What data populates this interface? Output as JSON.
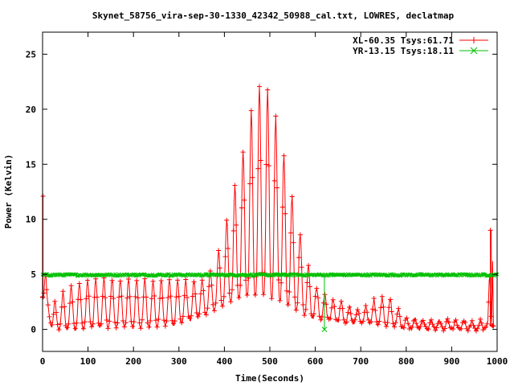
{
  "chart_data": {
    "type": "line",
    "title": "Skynet_58756_vira-sep-30-1330_42342_50988_cal.txt, LOWRES, declatmap",
    "xlabel": "Time(Seconds)",
    "ylabel": "Power (Kelvin)",
    "xlim": [
      0,
      1000
    ],
    "ylim": [
      -2,
      27
    ],
    "x_ticks": [
      0,
      100,
      200,
      300,
      400,
      500,
      600,
      700,
      800,
      900,
      1000
    ],
    "y_ticks": [
      0,
      5,
      10,
      15,
      20,
      25
    ],
    "grid": false,
    "legend_position": "top-right",
    "series": [
      {
        "name": "XL-60.35 Tsys:61.71",
        "color": "#ff0000",
        "marker": "+",
        "envelope": {
          "x": [
            0,
            10,
            20,
            40,
            60,
            80,
            100,
            150,
            200,
            250,
            300,
            350,
            380,
            400,
            420,
            440,
            460,
            480,
            500,
            520,
            540,
            560,
            580,
            600,
            620,
            650,
            700,
            730,
            760,
            800,
            850,
            900,
            950,
            980,
            985,
            990
          ],
          "ymax": [
            12.1,
            2.8,
            2.0,
            3.2,
            3.8,
            4.2,
            4.5,
            4.6,
            4.5,
            4.5,
            4.4,
            4.4,
            6.0,
            9.0,
            12.5,
            16.0,
            20.0,
            22.3,
            21.5,
            18.0,
            14.0,
            10.0,
            6.5,
            4.0,
            3.2,
            2.5,
            1.8,
            2.7,
            3.0,
            1.0,
            0.9,
            0.8,
            0.7,
            0.9,
            9.0,
            6.2
          ],
          "ymin": [
            2.9,
            1.6,
            0.2,
            0.0,
            0.0,
            0.1,
            0.2,
            0.2,
            0.2,
            0.3,
            0.5,
            1.2,
            1.8,
            2.3,
            2.6,
            2.9,
            3.0,
            3.0,
            3.0,
            2.7,
            2.2,
            1.7,
            1.3,
            1.0,
            0.9,
            0.7,
            0.5,
            0.5,
            0.4,
            0.1,
            0.0,
            0.0,
            0.0,
            0.0,
            0.2,
            0.2
          ]
        }
      },
      {
        "name": "YR-13.15 Tsys:18.11",
        "color": "#00c000",
        "marker": "x",
        "baseline": 4.95,
        "outliers": [
          {
            "x": 620,
            "y": 0.0
          }
        ]
      }
    ]
  }
}
